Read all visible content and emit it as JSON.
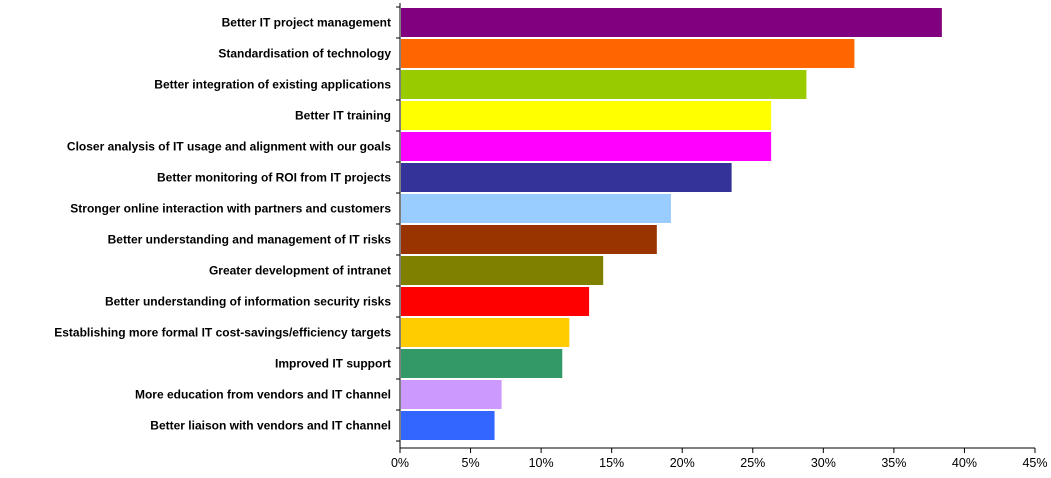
{
  "chart_data": {
    "type": "bar",
    "orientation": "horizontal",
    "title": "",
    "xlabel": "",
    "ylabel": "",
    "xlim": [
      0,
      45
    ],
    "grid": false,
    "legend": "none",
    "categories": [
      "Better IT project management",
      "Standardisation of technology",
      "Better integration of existing applications",
      "Better IT training",
      "Closer analysis of IT usage and alignment with our goals",
      "Better monitoring of ROI from IT projects",
      "Stronger online interaction with partners and customers",
      "Better understanding and management of IT risks",
      "Greater development of intranet",
      "Better understanding of information security risks",
      "Establishing more formal IT cost-savings/efficiency targets",
      "Improved IT support",
      "More education from vendors and IT channel",
      "Better liaison with vendors and IT channel"
    ],
    "values": [
      38.4,
      32.2,
      28.8,
      26.3,
      26.3,
      23.5,
      19.2,
      18.2,
      14.4,
      13.4,
      12.0,
      11.5,
      7.2,
      6.7
    ],
    "colors": [
      "#800080",
      "#FF6600",
      "#99CC00",
      "#FFFF00",
      "#FF00FF",
      "#333399",
      "#99CCFF",
      "#993300",
      "#808000",
      "#FF0000",
      "#FFCC00",
      "#339966",
      "#CC99FF",
      "#3366FF"
    ],
    "x_ticks": [
      0,
      5,
      10,
      15,
      20,
      25,
      30,
      35,
      40,
      45
    ],
    "x_tick_labels": [
      "0%",
      "5%",
      "10%",
      "15%",
      "20%",
      "25%",
      "30%",
      "35%",
      "40%",
      "45%"
    ]
  }
}
